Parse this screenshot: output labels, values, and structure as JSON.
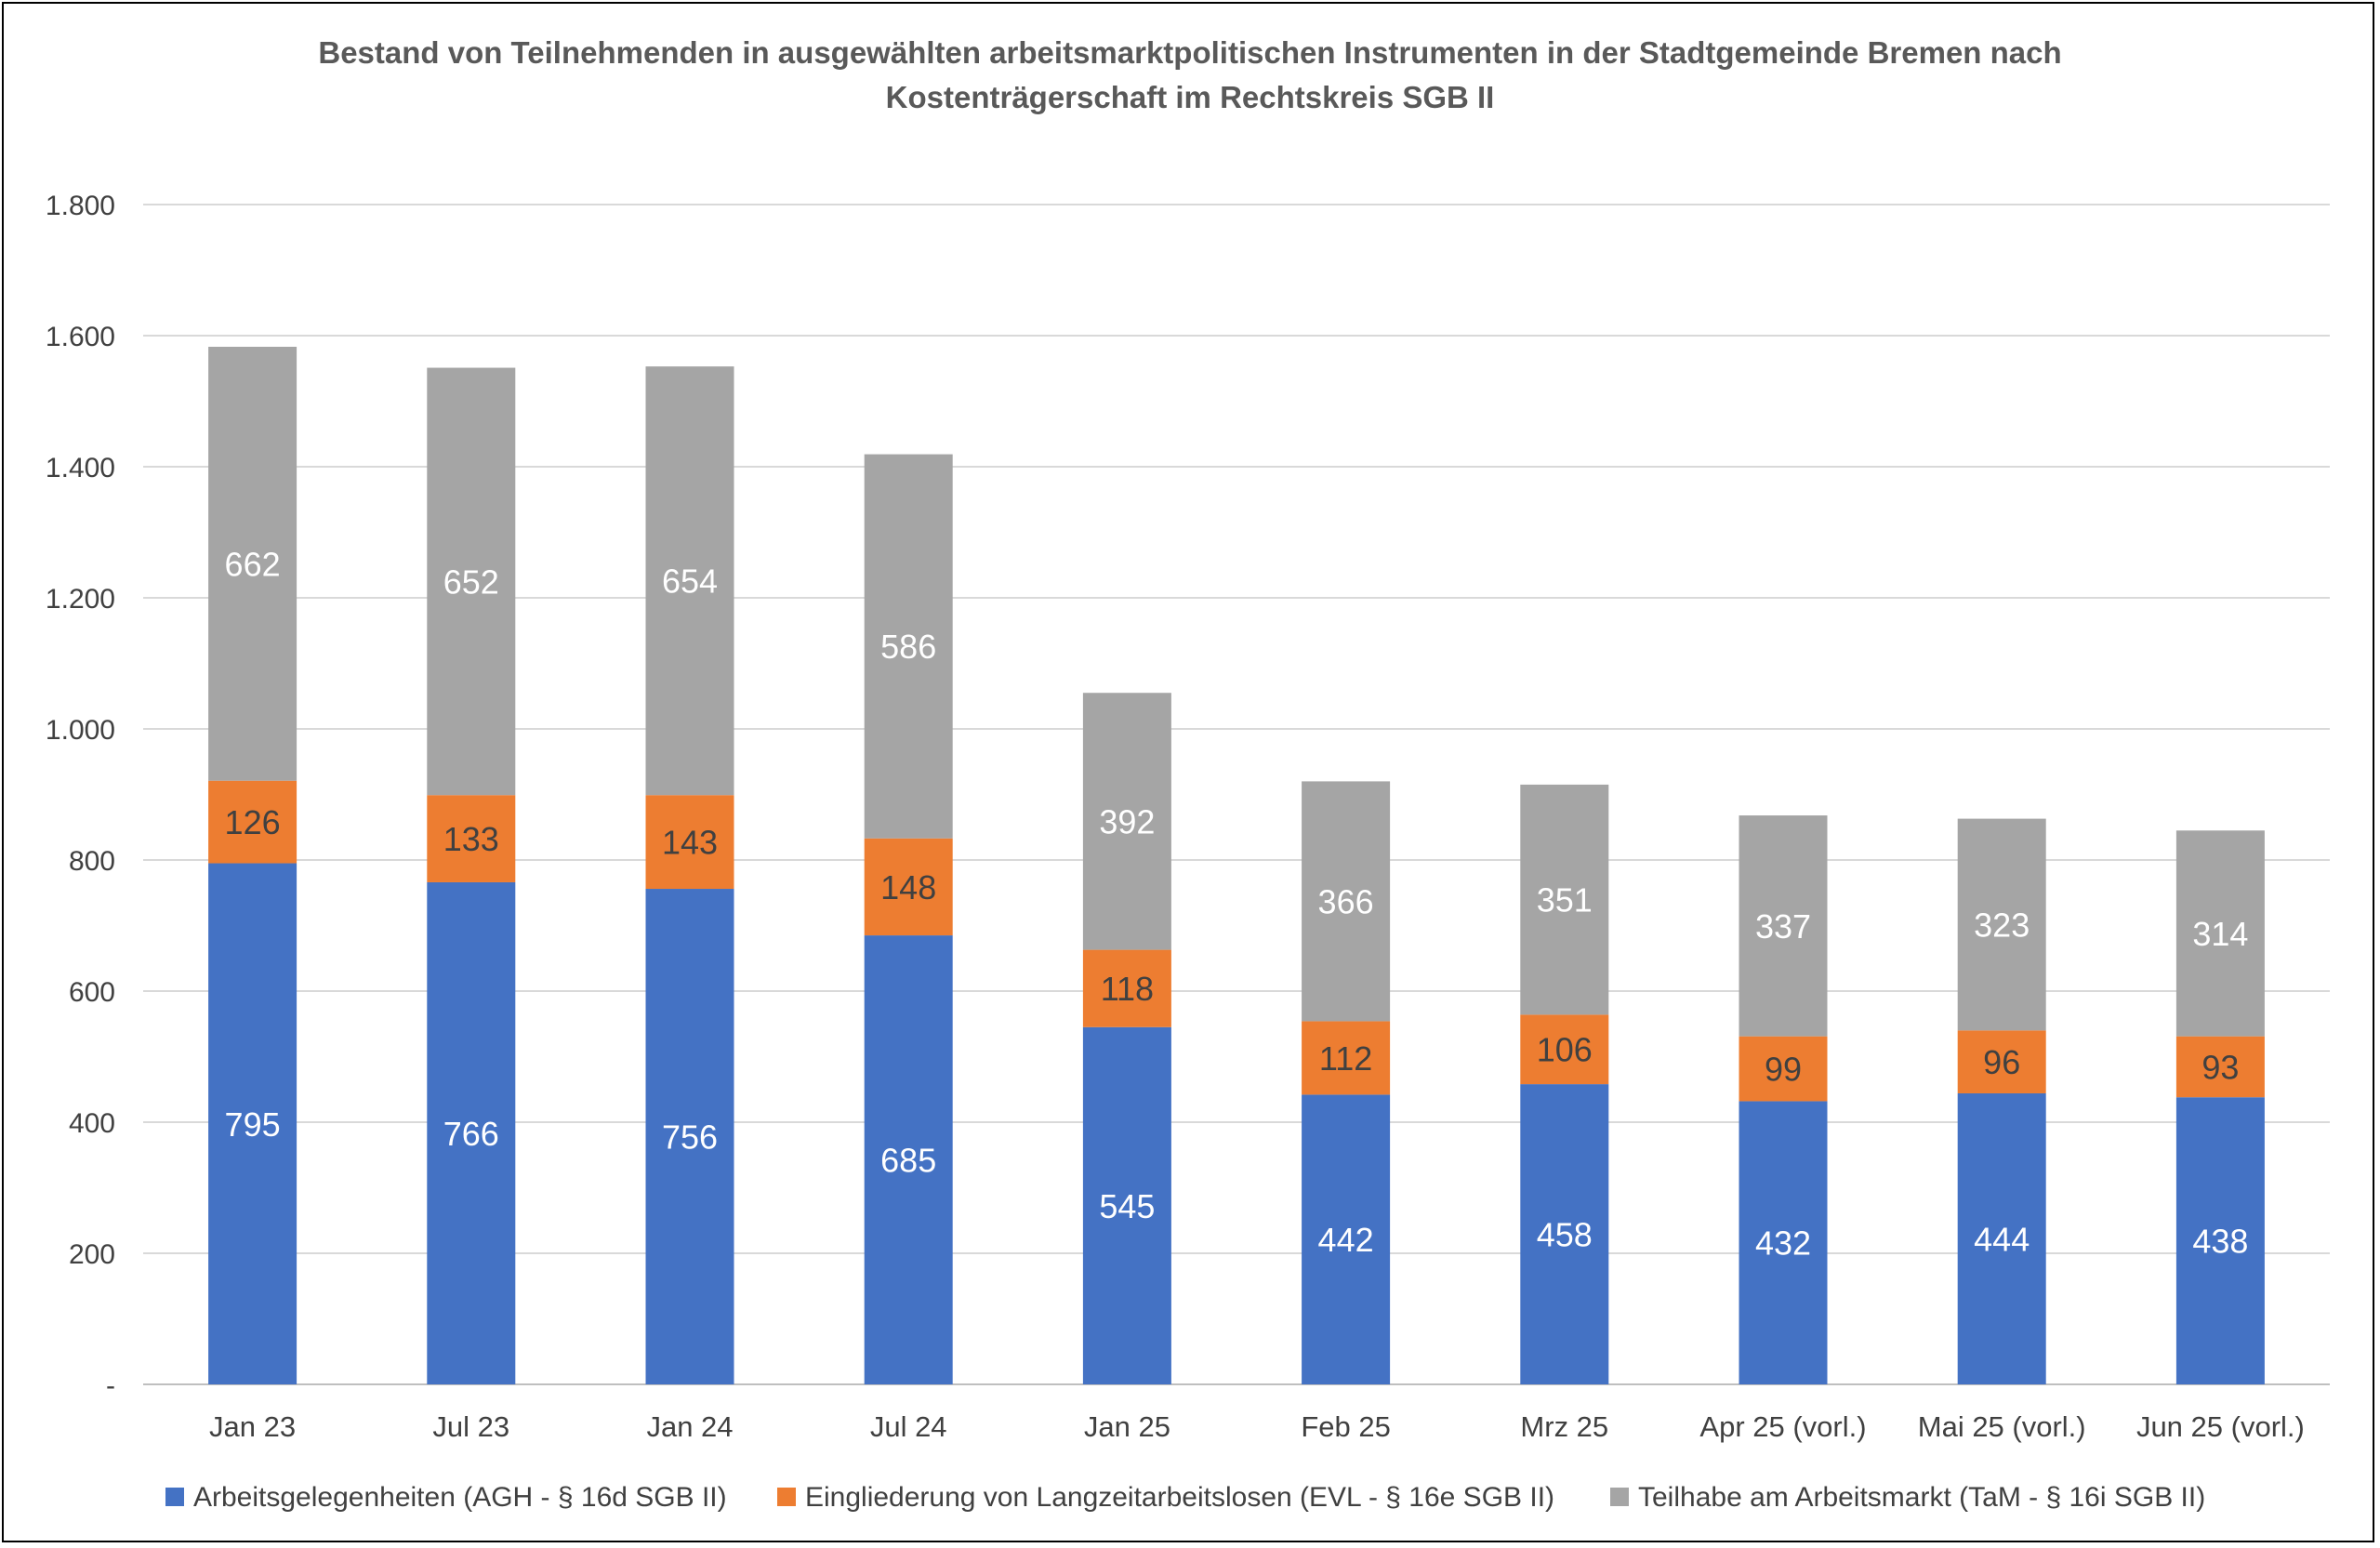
{
  "chart_data": {
    "type": "bar",
    "stacked": true,
    "title": "Bestand von Teilnehmenden in ausgewählten arbeitsmarktpolitischen Instrumenten in der Stadtgemeinde Bremen nach Kostenträgerschaft im Rechtskreis SGB II",
    "title_lines": [
      "Bestand von Teilnehmenden in ausgewählten arbeitsmarktpolitischen Instrumenten in der Stadtgemeinde Bremen nach",
      "Kostenträgerschaft im Rechtskreis SGB II"
    ],
    "categories": [
      "Jan 23",
      "Jul 23",
      "Jan 24",
      "Jul 24",
      "Jan 25",
      "Feb 25",
      "Mrz 25",
      "Apr 25 (vorl.)",
      "Mai 25 (vorl.)",
      "Jun 25 (vorl.)"
    ],
    "series": [
      {
        "name": "Arbeitsgelegenheiten (AGH - § 16d SGB II)",
        "color": "#4472C4",
        "label_color": "#ffffff",
        "values": [
          795,
          766,
          756,
          685,
          545,
          442,
          458,
          432,
          444,
          438
        ]
      },
      {
        "name": "Eingliederung von Langzeitarbeitslosen (EVL - § 16e SGB II)",
        "color": "#ED7D31",
        "label_color": "#404040",
        "values": [
          126,
          133,
          143,
          148,
          118,
          112,
          106,
          99,
          96,
          93
        ]
      },
      {
        "name": "Teilhabe am Arbeitsmarkt (TaM - § 16i SGB II)",
        "color": "#A5A5A5",
        "label_color": "#ffffff",
        "values": [
          662,
          652,
          654,
          586,
          392,
          366,
          351,
          337,
          323,
          314
        ]
      }
    ],
    "ylim": [
      0,
      1800
    ],
    "yticks": [
      0,
      200,
      400,
      600,
      800,
      1000,
      1200,
      1400,
      1600,
      1800
    ],
    "ytick_labels": [
      "-",
      "200",
      "400",
      "600",
      "800",
      "1.000",
      "1.200",
      "1.400",
      "1.600",
      "1.800"
    ],
    "grid": true,
    "legend_position": "bottom",
    "xlabel": "",
    "ylabel": ""
  }
}
